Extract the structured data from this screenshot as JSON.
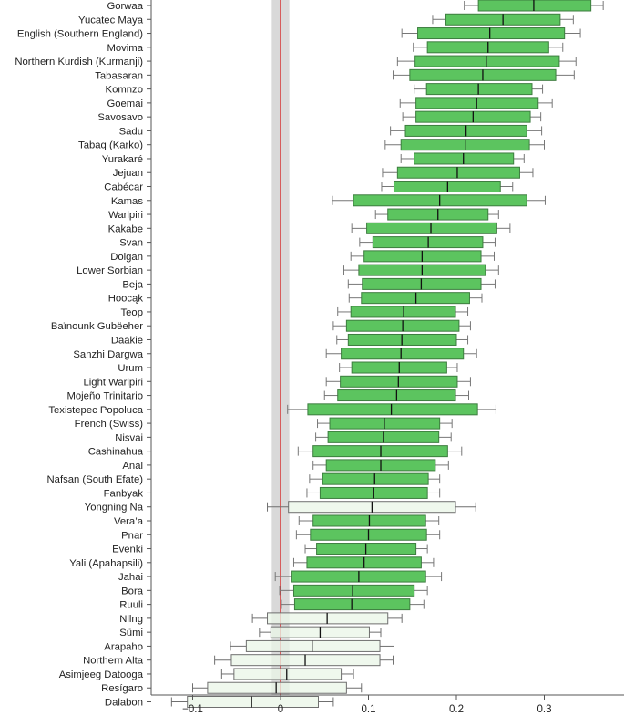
{
  "chart_data": {
    "type": "boxplot",
    "orientation": "horizontal",
    "title": "",
    "xlabel": "",
    "ylabel": "",
    "xlim": [
      -0.144,
      0.393
    ],
    "xticks": [
      -0.1,
      0,
      0.1,
      0.2,
      0.3
    ],
    "xtick_labels": [
      "−0.1",
      "0",
      "0.1",
      "0.2",
      "0.3"
    ],
    "reference_line": 0,
    "reference_band": [
      -0.01,
      0.01
    ],
    "colors": {
      "significant": "#5cc45f",
      "significant_border": "#3d7d3f",
      "nonsignificant": "#e9f5e7",
      "nonsignificant_border": "#6f6f6f",
      "reference_line": "#d62728",
      "band": "#d9d9d9",
      "whisker": "#777777"
    },
    "categories": [
      "Gorwaa",
      "Yucatec Maya",
      "English (Southern England)",
      "Movima",
      "Northern Kurdish (Kurmanji)",
      "Tabasaran",
      "Komnzo",
      "Goemai",
      "Savosavo",
      "Sadu",
      "Tabaq (Karko)",
      "Yurakaré",
      "Jejuan",
      "Cabécar",
      "Kamas",
      "Warlpiri",
      "Kakabe",
      "Svan",
      "Dolgan",
      "Lower Sorbian",
      "Beja",
      "Hoocąk",
      "Teop",
      "Baïnounk Gubëeher",
      "Daakie",
      "Sanzhi Dargwa",
      "Urum",
      "Light Warlpiri",
      "Mojeño Trinitario",
      "Texistepec Popoluca",
      "French (Swiss)",
      "Nisvai",
      "Cashinahua",
      "Anal",
      "Nafsan (South Efate)",
      "Fanbyak",
      "Yongning Na",
      "Vera’a",
      "Pnar",
      "Evenki",
      "Yali (Apahapsili)",
      "Jahai",
      "Bora",
      "Ruuli",
      "Nllng",
      "Sümi",
      "Arapaho",
      "Northern Alta",
      "Asimjeeg Datooga",
      "Resígaro",
      "Dalabon"
    ],
    "whisker_low": [
      0.209,
      0.173,
      0.138,
      0.151,
      0.133,
      0.128,
      0.152,
      0.136,
      0.139,
      0.125,
      0.119,
      0.137,
      0.116,
      0.115,
      0.059,
      0.108,
      0.081,
      0.09,
      0.08,
      0.072,
      0.077,
      0.078,
      0.065,
      0.06,
      0.064,
      0.052,
      0.067,
      0.052,
      0.05,
      0.008,
      0.042,
      0.04,
      0.02,
      0.037,
      0.033,
      0.03,
      -0.015,
      0.021,
      0.018,
      0.028,
      0.015,
      -0.006,
      -0.001,
      0.001,
      -0.032,
      -0.024,
      -0.057,
      -0.075,
      -0.067,
      -0.1,
      -0.124
    ],
    "q1": [
      0.225,
      0.188,
      0.156,
      0.167,
      0.153,
      0.147,
      0.166,
      0.154,
      0.154,
      0.142,
      0.137,
      0.152,
      0.133,
      0.129,
      0.083,
      0.122,
      0.098,
      0.105,
      0.095,
      0.089,
      0.093,
      0.092,
      0.08,
      0.075,
      0.077,
      0.069,
      0.081,
      0.068,
      0.065,
      0.031,
      0.056,
      0.054,
      0.037,
      0.052,
      0.048,
      0.045,
      0.009,
      0.037,
      0.034,
      0.041,
      0.03,
      0.012,
      0.015,
      0.016,
      -0.015,
      -0.011,
      -0.039,
      -0.056,
      -0.053,
      -0.083,
      -0.106
    ],
    "median": [
      0.288,
      0.253,
      0.238,
      0.236,
      0.234,
      0.23,
      0.225,
      0.223,
      0.219,
      0.211,
      0.21,
      0.208,
      0.201,
      0.19,
      0.181,
      0.179,
      0.171,
      0.168,
      0.161,
      0.161,
      0.16,
      0.154,
      0.14,
      0.139,
      0.138,
      0.137,
      0.135,
      0.134,
      0.132,
      0.126,
      0.118,
      0.117,
      0.114,
      0.114,
      0.107,
      0.106,
      0.104,
      0.101,
      0.1,
      0.097,
      0.095,
      0.089,
      0.082,
      0.081,
      0.053,
      0.045,
      0.036,
      0.028,
      0.007,
      -0.005,
      -0.033
    ],
    "q3": [
      0.353,
      0.318,
      0.323,
      0.305,
      0.317,
      0.313,
      0.286,
      0.293,
      0.284,
      0.28,
      0.283,
      0.265,
      0.272,
      0.25,
      0.28,
      0.236,
      0.246,
      0.23,
      0.228,
      0.233,
      0.228,
      0.215,
      0.199,
      0.203,
      0.2,
      0.208,
      0.189,
      0.201,
      0.199,
      0.224,
      0.181,
      0.18,
      0.19,
      0.176,
      0.168,
      0.167,
      0.199,
      0.165,
      0.166,
      0.154,
      0.16,
      0.165,
      0.152,
      0.147,
      0.122,
      0.101,
      0.113,
      0.113,
      0.069,
      0.075,
      0.043
    ],
    "whisker_high": [
      0.367,
      0.333,
      0.341,
      0.321,
      0.336,
      0.334,
      0.298,
      0.309,
      0.296,
      0.297,
      0.3,
      0.277,
      0.287,
      0.264,
      0.301,
      0.248,
      0.261,
      0.244,
      0.243,
      0.248,
      0.244,
      0.229,
      0.213,
      0.216,
      0.213,
      0.223,
      0.201,
      0.216,
      0.214,
      0.245,
      0.195,
      0.194,
      0.206,
      0.191,
      0.181,
      0.181,
      0.222,
      0.18,
      0.181,
      0.167,
      0.174,
      0.183,
      0.167,
      0.163,
      0.138,
      0.114,
      0.129,
      0.128,
      0.083,
      0.092,
      0.06
    ],
    "significant": [
      true,
      true,
      true,
      true,
      true,
      true,
      true,
      true,
      true,
      true,
      true,
      true,
      true,
      true,
      true,
      true,
      true,
      true,
      true,
      true,
      true,
      true,
      true,
      true,
      true,
      true,
      true,
      true,
      true,
      true,
      true,
      true,
      true,
      true,
      true,
      true,
      false,
      true,
      true,
      true,
      true,
      true,
      true,
      true,
      false,
      false,
      false,
      false,
      false,
      false,
      false
    ]
  }
}
